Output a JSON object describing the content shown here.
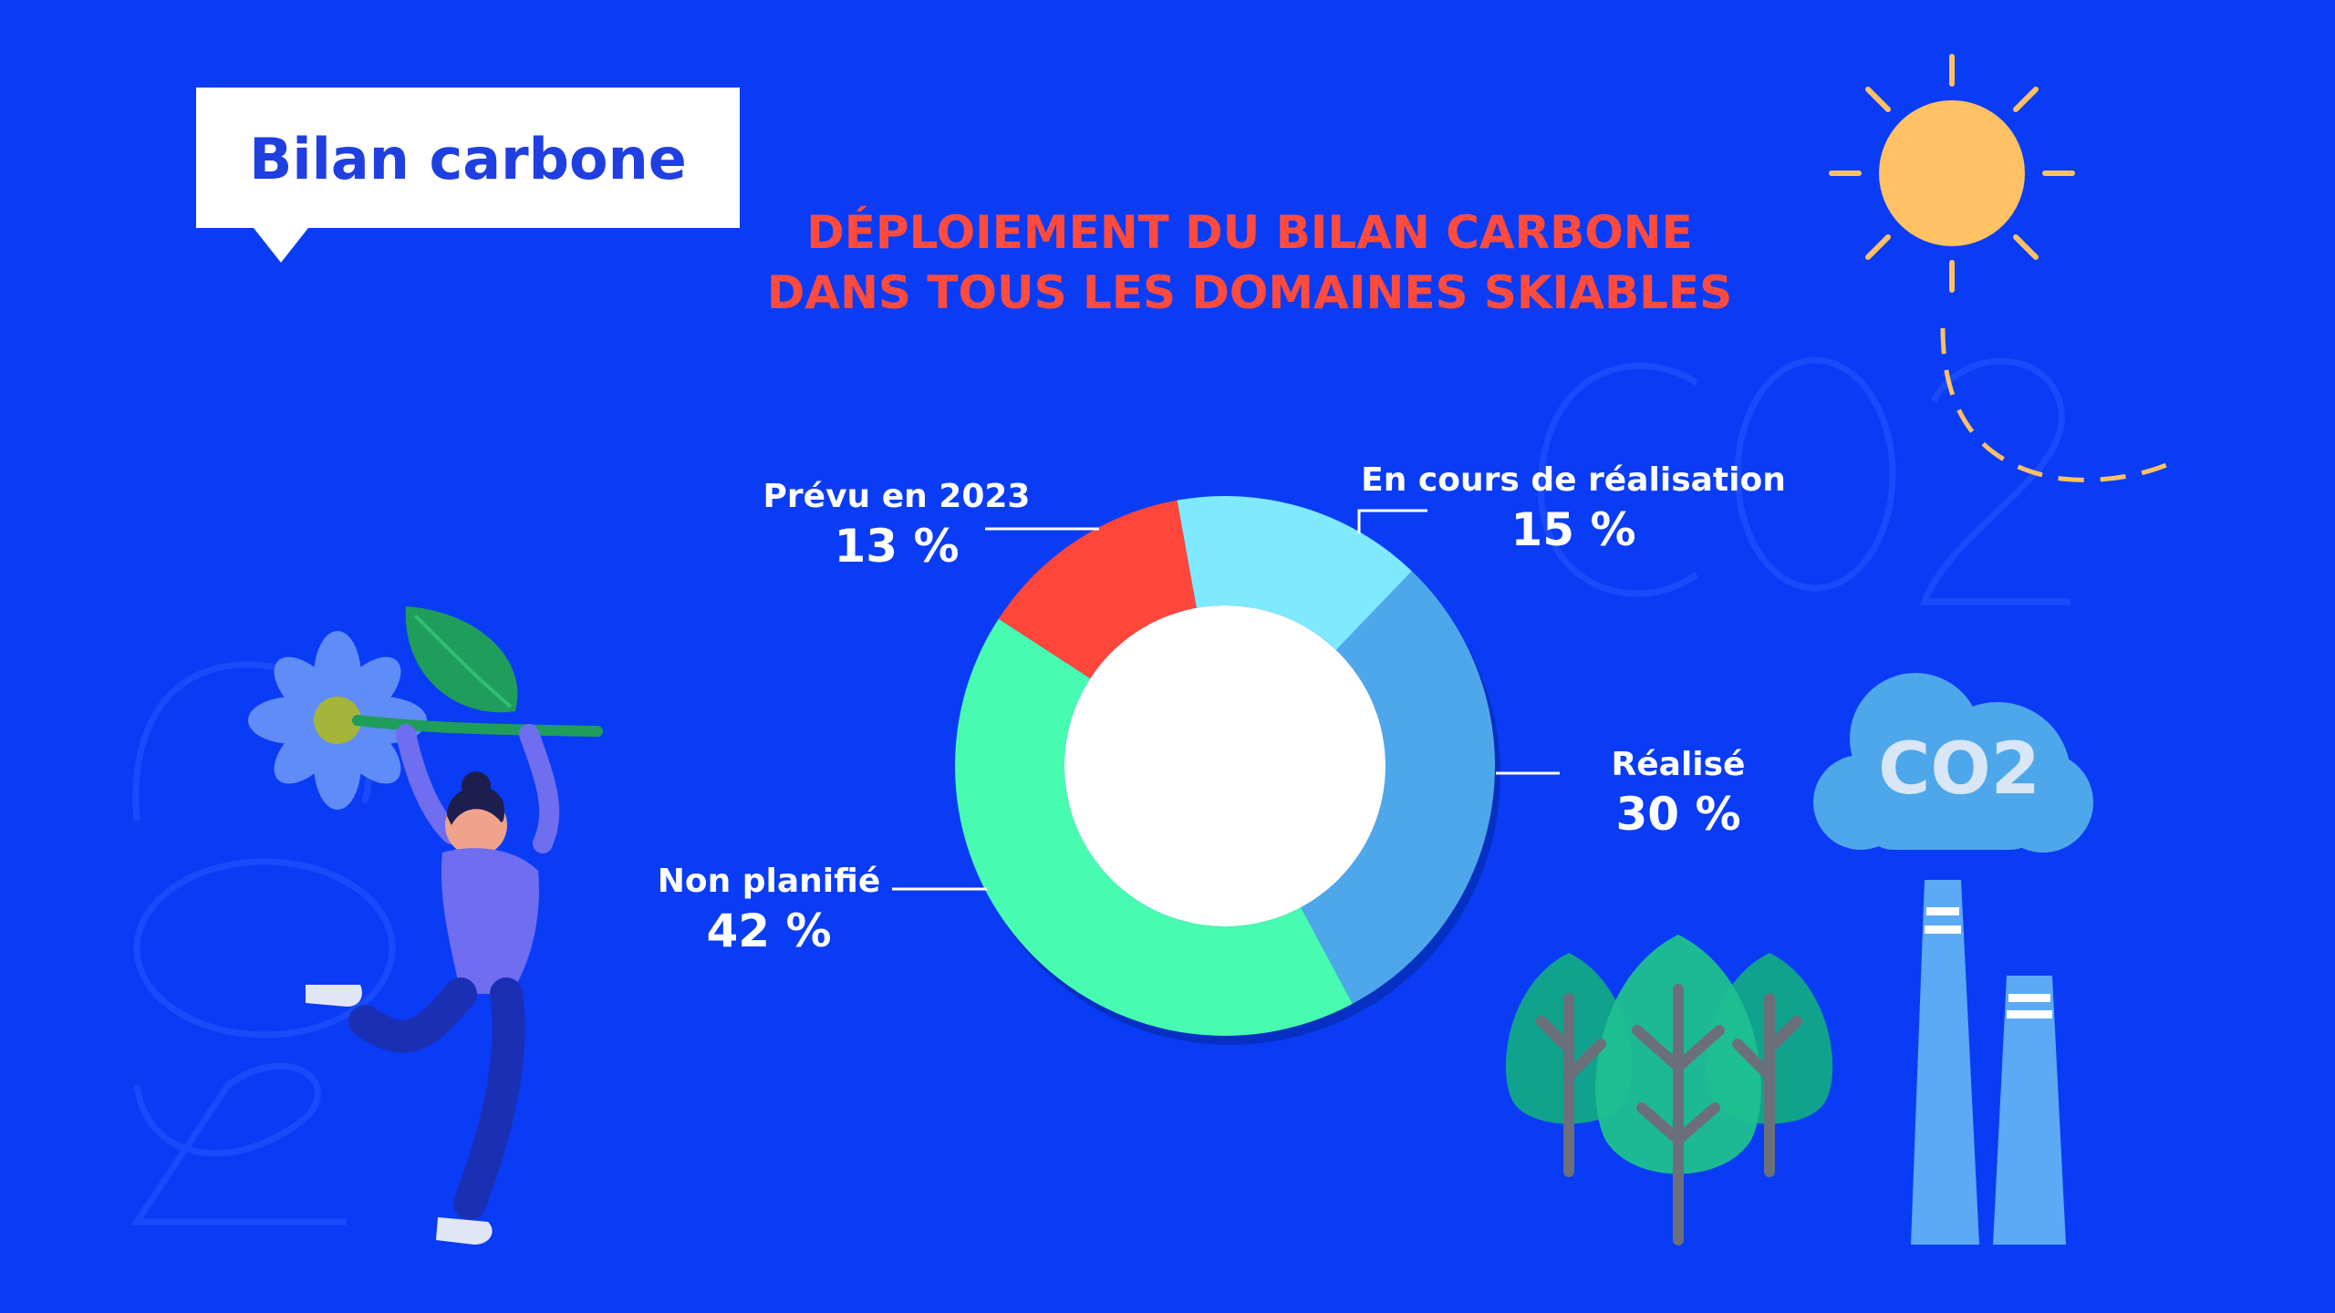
{
  "tag": {
    "title": "Bilan carbone"
  },
  "heading": {
    "line1": "DÉPLOIEMENT DU BILAN CARBONE",
    "line2": "DANS TOUS LES DOMAINES SKIABLES"
  },
  "icons": {
    "sun": "sun-icon",
    "cloud": "co2-cloud-icon",
    "cloud_label": "CO2",
    "trees": "trees-icon",
    "chimneys": "factory-chimneys-icon",
    "person": "person-with-flower-icon"
  },
  "colors": {
    "background": "#0a3cf5",
    "heading": "#ff4b3e",
    "tag_text": "#1f3fe0"
  },
  "chart_data": {
    "type": "pie",
    "variant": "donut",
    "title": "DÉPLOIEMENT DU BILAN CARBONE DANS TOUS LES DOMAINES SKIABLES",
    "slices": [
      {
        "label": "Prévu en 2023",
        "value": 13,
        "display": "13 %",
        "color": "#ff463a"
      },
      {
        "label": "En cours de réalisation",
        "value": 15,
        "display": "15 %",
        "color": "#7fe9ff"
      },
      {
        "label": "Réalisé",
        "value": 30,
        "display": "30 %",
        "color": "#4ea7ea"
      },
      {
        "label": "Non planifié",
        "value": 42,
        "display": "42 %",
        "color": "#47fbb0"
      }
    ],
    "unit": "%"
  }
}
